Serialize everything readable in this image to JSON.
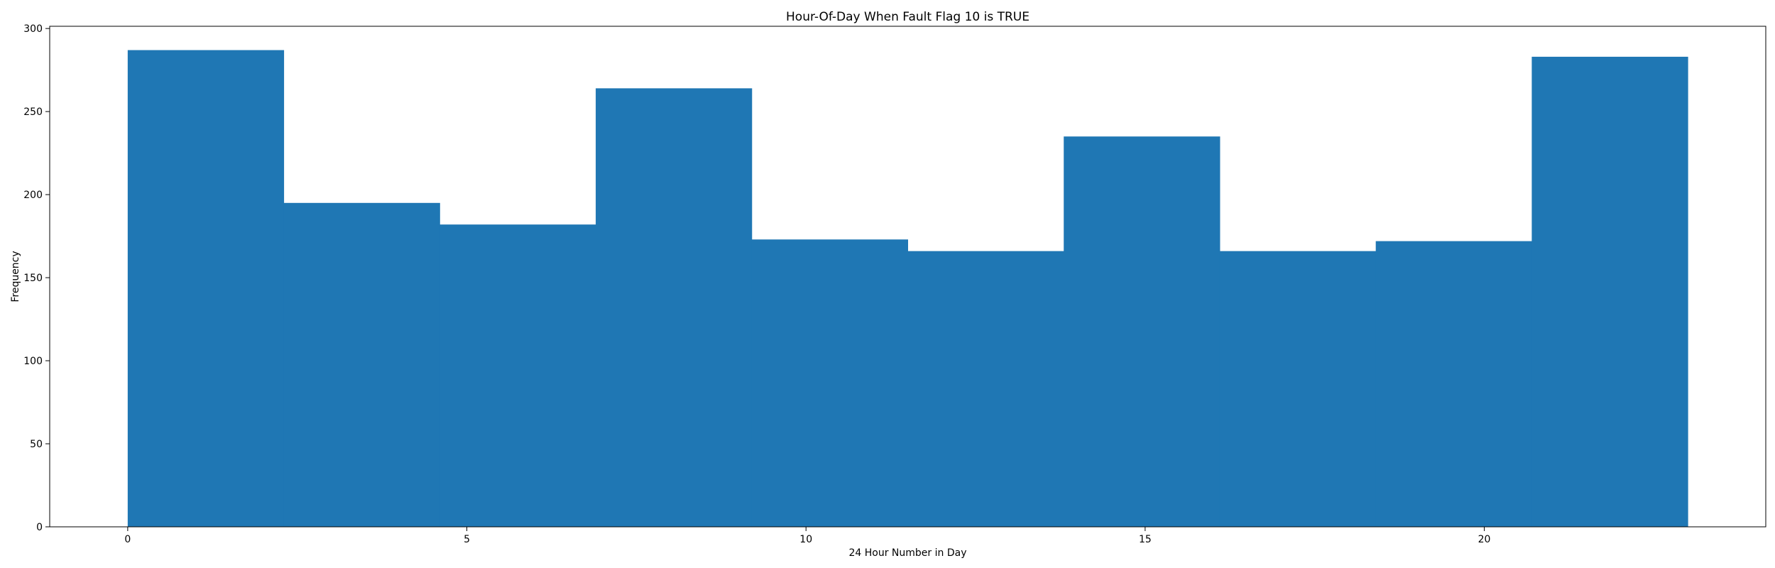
{
  "chart_data": {
    "type": "bar",
    "title": "Hour-Of-Day When Fault Flag 10 is TRUE",
    "xlabel": "24 Hour Number in Day",
    "ylabel": "Frequency",
    "bin_edges": [
      0,
      2.3,
      4.6,
      6.9,
      9.2,
      11.5,
      13.8,
      16.1,
      18.4,
      20.7,
      23
    ],
    "values": [
      287,
      195,
      182,
      264,
      173,
      166,
      235,
      166,
      172,
      283
    ],
    "xlim": [
      -1.15,
      24.15
    ],
    "ylim": [
      0,
      301.35
    ],
    "xticks": [
      0,
      5,
      10,
      15,
      20
    ],
    "yticks": [
      0,
      50,
      100,
      150,
      200,
      250,
      300
    ],
    "bar_color": "#1f77b4",
    "grid": false,
    "legend": "none"
  }
}
